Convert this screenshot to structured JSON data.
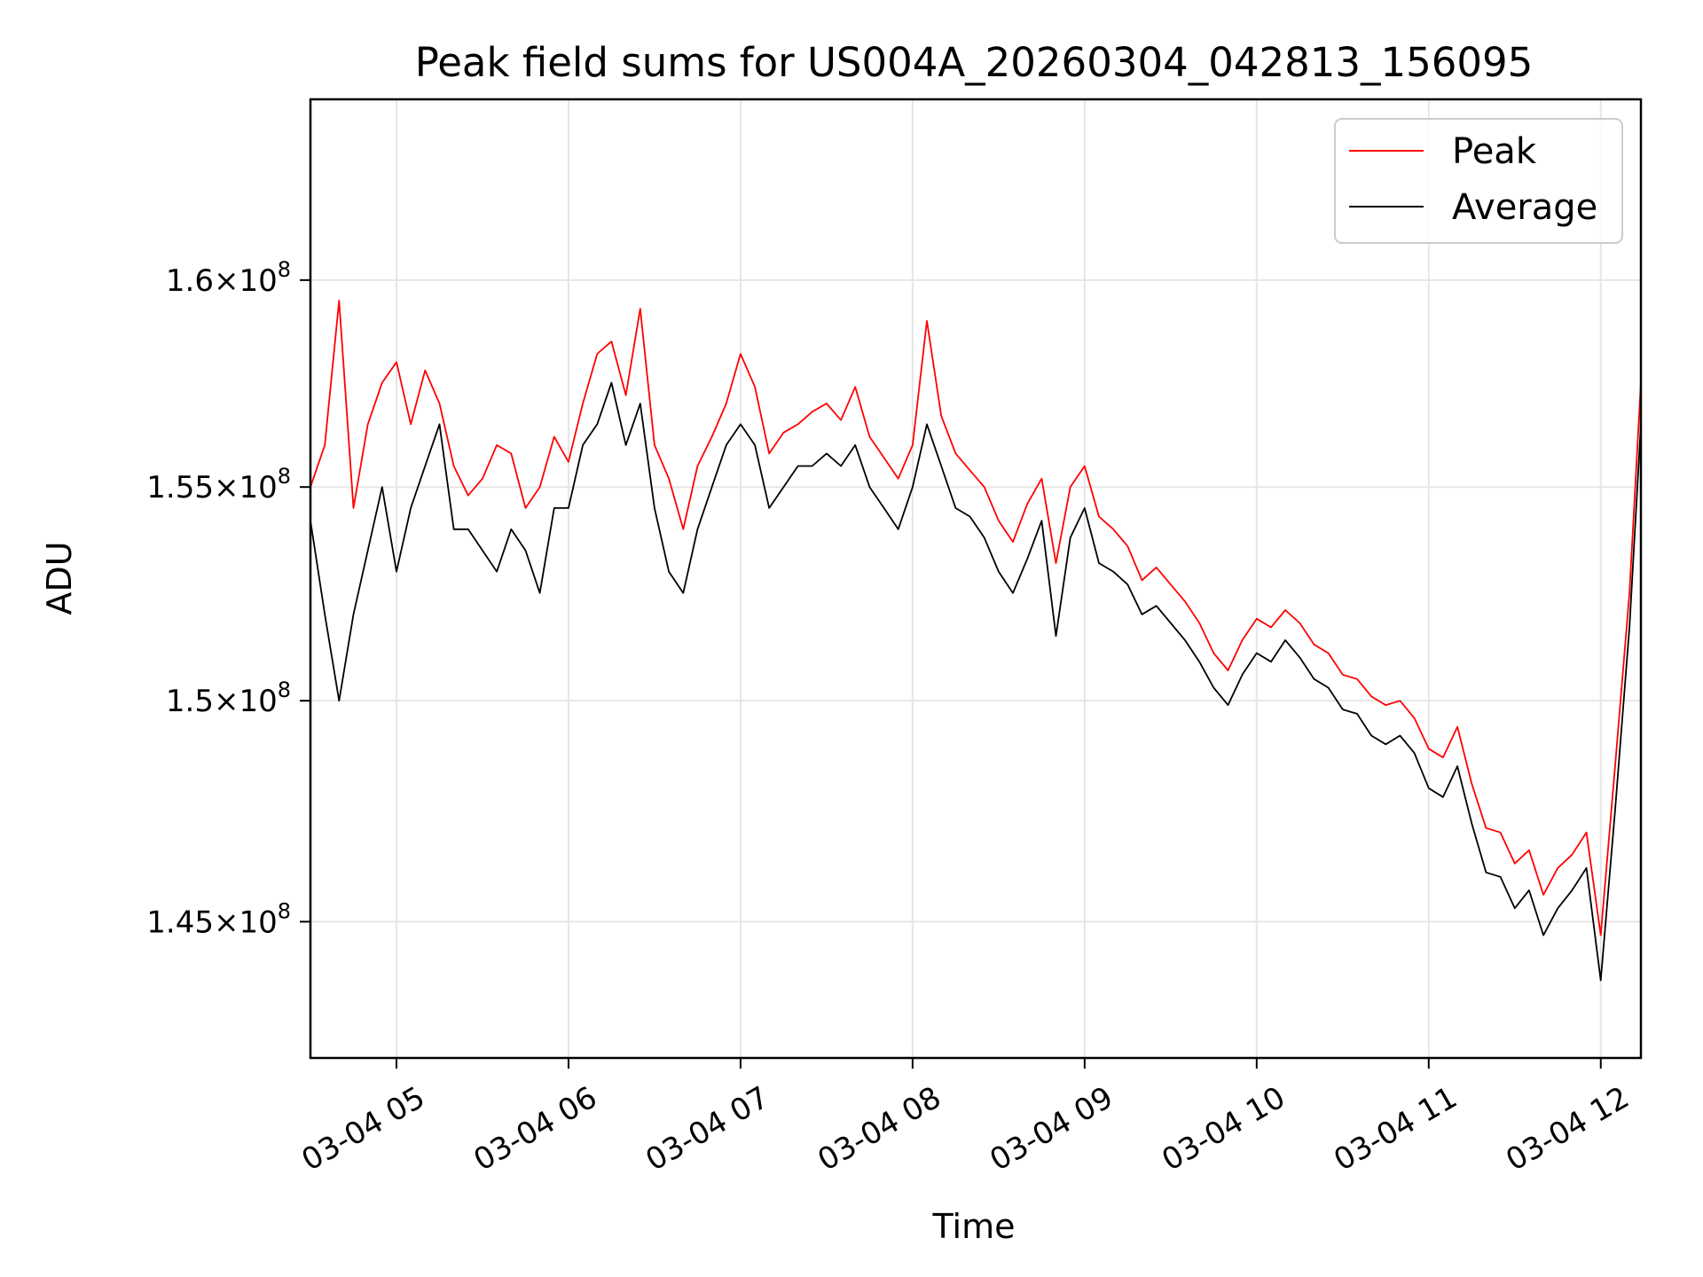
{
  "chart_data": {
    "type": "line",
    "title": "Peak field sums for US004A_20260304_042813_156095",
    "xlabel": "Time",
    "ylabel": "ADU",
    "xlim": [
      "2026-03-04 04:30",
      "2026-03-04 12:14"
    ],
    "ylim": [
      142000000,
      164500000
    ],
    "y_scale": "log",
    "grid": true,
    "legend_position": "top-right",
    "x_ticks": [
      {
        "value": "2026-03-04 05:00",
        "label": "03-04 05"
      },
      {
        "value": "2026-03-04 06:00",
        "label": "03-04 06"
      },
      {
        "value": "2026-03-04 07:00",
        "label": "03-04 07"
      },
      {
        "value": "2026-03-04 08:00",
        "label": "03-04 08"
      },
      {
        "value": "2026-03-04 09:00",
        "label": "03-04 09"
      },
      {
        "value": "2026-03-04 10:00",
        "label": "03-04 10"
      },
      {
        "value": "2026-03-04 11:00",
        "label": "03-04 11"
      },
      {
        "value": "2026-03-04 12:00",
        "label": "03-04 12"
      }
    ],
    "y_ticks": [
      {
        "value": 145000000,
        "mantissa": "1.45",
        "exponent": "8"
      },
      {
        "value": 150000000,
        "mantissa": "1.5",
        "exponent": "8"
      },
      {
        "value": 155000000,
        "mantissa": "1.55",
        "exponent": "8"
      },
      {
        "value": 160000000,
        "mantissa": "1.6",
        "exponent": "8"
      }
    ],
    "series": [
      {
        "name": "Peak",
        "color": "#ff0000",
        "x": [
          "2026-03-04 04:30",
          "2026-03-04 04:35",
          "2026-03-04 04:40",
          "2026-03-04 04:45",
          "2026-03-04 04:50",
          "2026-03-04 04:55",
          "2026-03-04 05:00",
          "2026-03-04 05:05",
          "2026-03-04 05:10",
          "2026-03-04 05:15",
          "2026-03-04 05:20",
          "2026-03-04 05:25",
          "2026-03-04 05:30",
          "2026-03-04 05:35",
          "2026-03-04 05:40",
          "2026-03-04 05:45",
          "2026-03-04 05:50",
          "2026-03-04 05:55",
          "2026-03-04 06:00",
          "2026-03-04 06:05",
          "2026-03-04 06:10",
          "2026-03-04 06:15",
          "2026-03-04 06:20",
          "2026-03-04 06:25",
          "2026-03-04 06:30",
          "2026-03-04 06:35",
          "2026-03-04 06:40",
          "2026-03-04 06:45",
          "2026-03-04 06:50",
          "2026-03-04 06:55",
          "2026-03-04 07:00",
          "2026-03-04 07:05",
          "2026-03-04 07:10",
          "2026-03-04 07:15",
          "2026-03-04 07:20",
          "2026-03-04 07:25",
          "2026-03-04 07:30",
          "2026-03-04 07:35",
          "2026-03-04 07:40",
          "2026-03-04 07:45",
          "2026-03-04 07:50",
          "2026-03-04 07:55",
          "2026-03-04 08:00",
          "2026-03-04 08:05",
          "2026-03-04 08:10",
          "2026-03-04 08:15",
          "2026-03-04 08:20",
          "2026-03-04 08:25",
          "2026-03-04 08:30",
          "2026-03-04 08:35",
          "2026-03-04 08:40",
          "2026-03-04 08:45",
          "2026-03-04 08:50",
          "2026-03-04 08:55",
          "2026-03-04 09:00",
          "2026-03-04 09:05",
          "2026-03-04 09:10",
          "2026-03-04 09:15",
          "2026-03-04 09:20",
          "2026-03-04 09:25",
          "2026-03-04 09:30",
          "2026-03-04 09:35",
          "2026-03-04 09:40",
          "2026-03-04 09:45",
          "2026-03-04 09:50",
          "2026-03-04 09:55",
          "2026-03-04 10:00",
          "2026-03-04 10:05",
          "2026-03-04 10:10",
          "2026-03-04 10:15",
          "2026-03-04 10:20",
          "2026-03-04 10:25",
          "2026-03-04 10:30",
          "2026-03-04 10:35",
          "2026-03-04 10:40",
          "2026-03-04 10:45",
          "2026-03-04 10:50",
          "2026-03-04 10:55",
          "2026-03-04 11:00",
          "2026-03-04 11:05",
          "2026-03-04 11:10",
          "2026-03-04 11:15",
          "2026-03-04 11:20",
          "2026-03-04 11:25",
          "2026-03-04 11:30",
          "2026-03-04 11:35",
          "2026-03-04 11:40",
          "2026-03-04 11:45",
          "2026-03-04 11:50",
          "2026-03-04 11:55",
          "2026-03-04 12:00",
          "2026-03-04 12:05",
          "2026-03-04 12:10",
          "2026-03-04 12:14"
        ],
        "values": [
          155000000,
          156000000,
          159500000,
          154500000,
          156500000,
          157500000,
          158000000,
          156500000,
          157800000,
          157000000,
          155500000,
          154800000,
          155200000,
          156000000,
          155800000,
          154500000,
          155000000,
          156200000,
          155600000,
          157000000,
          158200000,
          158500000,
          157200000,
          159300000,
          156000000,
          155200000,
          154000000,
          155500000,
          156200000,
          157000000,
          158200000,
          157400000,
          155800000,
          156300000,
          156500000,
          156800000,
          157000000,
          156600000,
          157400000,
          156200000,
          155700000,
          155200000,
          156000000,
          159000000,
          156700000,
          155800000,
          155400000,
          155000000,
          154200000,
          153700000,
          154600000,
          155200000,
          153200000,
          155000000,
          155500000,
          154300000,
          154000000,
          153600000,
          152800000,
          153100000,
          152700000,
          152300000,
          151800000,
          151100000,
          150700000,
          151400000,
          151900000,
          151700000,
          152100000,
          151800000,
          151300000,
          151100000,
          150600000,
          150500000,
          150100000,
          149900000,
          150000000,
          149600000,
          148900000,
          148700000,
          149400000,
          148100000,
          147100000,
          147000000,
          146300000,
          146600000,
          145600000,
          146200000,
          146500000,
          147000000,
          144700000,
          148500000,
          152500000,
          157500000
        ]
      },
      {
        "name": "Average",
        "color": "#000000",
        "x": [
          "2026-03-04 04:30",
          "2026-03-04 04:35",
          "2026-03-04 04:40",
          "2026-03-04 04:45",
          "2026-03-04 04:50",
          "2026-03-04 04:55",
          "2026-03-04 05:00",
          "2026-03-04 05:05",
          "2026-03-04 05:10",
          "2026-03-04 05:15",
          "2026-03-04 05:20",
          "2026-03-04 05:25",
          "2026-03-04 05:30",
          "2026-03-04 05:35",
          "2026-03-04 05:40",
          "2026-03-04 05:45",
          "2026-03-04 05:50",
          "2026-03-04 05:55",
          "2026-03-04 06:00",
          "2026-03-04 06:05",
          "2026-03-04 06:10",
          "2026-03-04 06:15",
          "2026-03-04 06:20",
          "2026-03-04 06:25",
          "2026-03-04 06:30",
          "2026-03-04 06:35",
          "2026-03-04 06:40",
          "2026-03-04 06:45",
          "2026-03-04 06:50",
          "2026-03-04 06:55",
          "2026-03-04 07:00",
          "2026-03-04 07:05",
          "2026-03-04 07:10",
          "2026-03-04 07:15",
          "2026-03-04 07:20",
          "2026-03-04 07:25",
          "2026-03-04 07:30",
          "2026-03-04 07:35",
          "2026-03-04 07:40",
          "2026-03-04 07:45",
          "2026-03-04 07:50",
          "2026-03-04 07:55",
          "2026-03-04 08:00",
          "2026-03-04 08:05",
          "2026-03-04 08:10",
          "2026-03-04 08:15",
          "2026-03-04 08:20",
          "2026-03-04 08:25",
          "2026-03-04 08:30",
          "2026-03-04 08:35",
          "2026-03-04 08:40",
          "2026-03-04 08:45",
          "2026-03-04 08:50",
          "2026-03-04 08:55",
          "2026-03-04 09:00",
          "2026-03-04 09:05",
          "2026-03-04 09:10",
          "2026-03-04 09:15",
          "2026-03-04 09:20",
          "2026-03-04 09:25",
          "2026-03-04 09:30",
          "2026-03-04 09:35",
          "2026-03-04 09:40",
          "2026-03-04 09:45",
          "2026-03-04 09:50",
          "2026-03-04 09:55",
          "2026-03-04 10:00",
          "2026-03-04 10:05",
          "2026-03-04 10:10",
          "2026-03-04 10:15",
          "2026-03-04 10:20",
          "2026-03-04 10:25",
          "2026-03-04 10:30",
          "2026-03-04 10:35",
          "2026-03-04 10:40",
          "2026-03-04 10:45",
          "2026-03-04 10:50",
          "2026-03-04 10:55",
          "2026-03-04 11:00",
          "2026-03-04 11:05",
          "2026-03-04 11:10",
          "2026-03-04 11:15",
          "2026-03-04 11:20",
          "2026-03-04 11:25",
          "2026-03-04 11:30",
          "2026-03-04 11:35",
          "2026-03-04 11:40",
          "2026-03-04 11:45",
          "2026-03-04 11:50",
          "2026-03-04 11:55",
          "2026-03-04 12:00",
          "2026-03-04 12:05",
          "2026-03-04 12:10",
          "2026-03-04 12:14"
        ],
        "values": [
          154200000,
          152000000,
          150000000,
          152000000,
          153500000,
          155000000,
          153000000,
          154500000,
          155500000,
          156500000,
          154000000,
          154000000,
          153500000,
          153000000,
          154000000,
          153500000,
          152500000,
          154500000,
          154500000,
          156000000,
          156500000,
          157500000,
          156000000,
          157000000,
          154500000,
          153000000,
          152500000,
          154000000,
          155000000,
          156000000,
          156500000,
          156000000,
          154500000,
          155000000,
          155500000,
          155500000,
          155800000,
          155500000,
          156000000,
          155000000,
          154500000,
          154000000,
          155000000,
          156500000,
          155500000,
          154500000,
          154300000,
          153800000,
          153000000,
          152500000,
          153300000,
          154200000,
          151500000,
          153800000,
          154500000,
          153200000,
          153000000,
          152700000,
          152000000,
          152200000,
          151800000,
          151400000,
          150900000,
          150300000,
          149900000,
          150600000,
          151100000,
          150900000,
          151400000,
          151000000,
          150500000,
          150300000,
          149800000,
          149700000,
          149200000,
          149000000,
          149200000,
          148800000,
          148000000,
          147800000,
          148500000,
          147200000,
          146100000,
          146000000,
          145300000,
          145700000,
          144700000,
          145300000,
          145700000,
          146200000,
          143700000,
          147500000,
          151700000,
          156500000
        ]
      }
    ]
  }
}
